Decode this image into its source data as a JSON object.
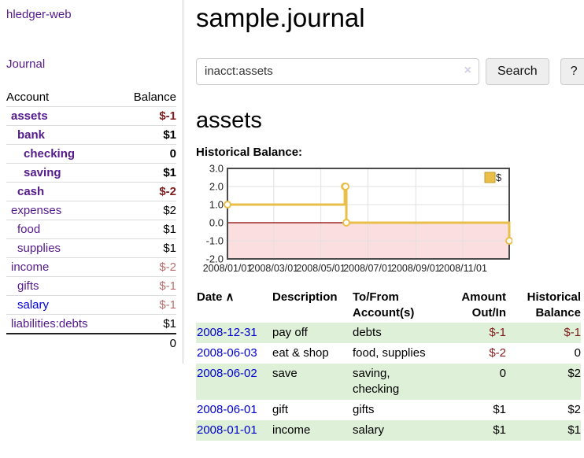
{
  "app": {
    "brand": "hledger-web"
  },
  "sidebar": {
    "journal_link": "Journal",
    "accounts": {
      "header_account": "Account",
      "header_balance": "Balance",
      "rows": [
        {
          "name": "assets",
          "balance": "$-1"
        },
        {
          "name": "bank",
          "balance": "$1"
        },
        {
          "name": "checking",
          "balance": "0"
        },
        {
          "name": "saving",
          "balance": "$1"
        },
        {
          "name": "cash",
          "balance": "$-2"
        },
        {
          "name": "expenses",
          "balance": "$2"
        },
        {
          "name": "food",
          "balance": "$1"
        },
        {
          "name": "supplies",
          "balance": "$1"
        },
        {
          "name": "income",
          "balance": "$-2"
        },
        {
          "name": "gifts",
          "balance": "$-1"
        },
        {
          "name": "salary",
          "balance": "$-1"
        },
        {
          "name": "liabilities:debts",
          "balance": "$1"
        }
      ],
      "total": "0"
    }
  },
  "main": {
    "title": "sample.journal",
    "search": {
      "value": "inacct:assets",
      "clear_icon": "×",
      "search_button": "Search",
      "help_button": "?"
    },
    "account_heading": "assets",
    "chart_heading": "Historical Balance:",
    "register": {
      "headers": {
        "date": "Date",
        "sort_icon": "∧",
        "description": "Description",
        "accounts": "To/From Account(s)",
        "amount": "Amount Out/In",
        "balance": "Historical Balance"
      },
      "rows": [
        {
          "date": "2008-12-31",
          "description": "pay off",
          "accounts": "debts",
          "amount": "$-1",
          "balance": "$-1"
        },
        {
          "date": "2008-06-03",
          "description": "eat & shop",
          "accounts": "food, supplies",
          "amount": "$-2",
          "balance": "0"
        },
        {
          "date": "2008-06-02",
          "description": "save",
          "accounts": "saving, checking",
          "amount": "0",
          "balance": "$2"
        },
        {
          "date": "2008-06-01",
          "description": "gift",
          "accounts": "gifts",
          "amount": "$1",
          "balance": "$2"
        },
        {
          "date": "2008-01-01",
          "description": "income",
          "accounts": "salary",
          "amount": "$1",
          "balance": "$1"
        }
      ]
    }
  },
  "chart_data": {
    "type": "line",
    "step": true,
    "title": "Historical Balance:",
    "xrange": [
      "2008-01-01",
      "2008-12-31"
    ],
    "ylim": [
      -2,
      3
    ],
    "yticks": [
      3,
      2,
      1,
      0,
      -1,
      -2
    ],
    "xticks": [
      "2008/01/01",
      "2008/03/01",
      "2008/05/01",
      "2008/07/01",
      "2008/09/01",
      "2008/11/01"
    ],
    "series": [
      {
        "name": "$",
        "color": "#e9bf4a",
        "points": [
          {
            "x": "2008-01-01",
            "y": 1
          },
          {
            "x": "2008-06-01",
            "y": 2
          },
          {
            "x": "2008-06-02",
            "y": 2
          },
          {
            "x": "2008-06-03",
            "y": 0
          },
          {
            "x": "2008-12-31",
            "y": -1
          }
        ]
      }
    ],
    "legend": {
      "label": "$",
      "position": "top-right"
    },
    "grid": true,
    "negative_region_color": "#fbdfe0",
    "zero_line_color": "#8b0000"
  }
}
